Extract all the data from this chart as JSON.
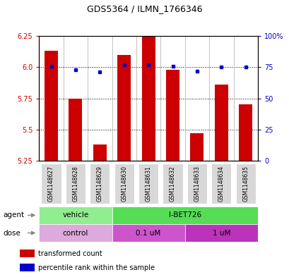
{
  "title": "GDS5364 / ILMN_1766346",
  "samples": [
    "GSM1148627",
    "GSM1148628",
    "GSM1148629",
    "GSM1148630",
    "GSM1148631",
    "GSM1148632",
    "GSM1148633",
    "GSM1148634",
    "GSM1148635"
  ],
  "bar_values": [
    6.13,
    5.75,
    5.38,
    6.1,
    6.25,
    5.98,
    5.47,
    5.86,
    5.7
  ],
  "percentile_values": [
    76,
    73,
    71,
    77,
    77,
    76,
    72,
    75,
    75
  ],
  "ymin": 5.25,
  "ymax": 6.25,
  "yticks": [
    5.25,
    5.5,
    5.75,
    6.0,
    6.25
  ],
  "right_ytick_labels": [
    "0",
    "25",
    "50",
    "75",
    "100%"
  ],
  "bar_color": "#cc0000",
  "dot_color": "#0000cc",
  "bar_width": 0.55,
  "agent_vehicle_color": "#90ee90",
  "agent_ibet_color": "#55dd55",
  "dose_control_color": "#ddaadd",
  "dose_01um_color": "#cc55cc",
  "dose_1um_color": "#bb33bb",
  "grid_color": "#000000",
  "bg_plot": "#ffffff",
  "tick_color_left": "#cc0000",
  "tick_color_right": "#0000cc",
  "title_fontsize": 9,
  "tick_fontsize": 7,
  "label_fontsize": 7.5,
  "legend_fontsize": 7
}
